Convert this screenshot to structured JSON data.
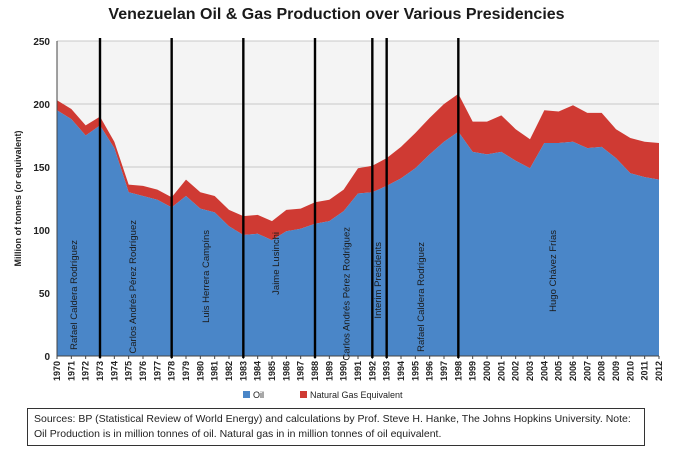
{
  "chart_data": {
    "type": "area",
    "title": "Venezuelan Oil & Gas Production over Various Presidencies",
    "ylabel": "Million of tonnes (or equivalent)",
    "xlabel": "",
    "ylim": [
      0,
      250
    ],
    "yticks": [
      0,
      50,
      100,
      150,
      200,
      250
    ],
    "grid": true,
    "legend_position": "bottom",
    "x": [
      "1970",
      "1971",
      "1972",
      "1973",
      "1974",
      "1975",
      "1976",
      "1977",
      "1978",
      "1979",
      "1980",
      "1981",
      "1982",
      "1983",
      "1984",
      "1985",
      "1986",
      "1987",
      "1988",
      "1989",
      "1990",
      "1991",
      "1992",
      "1993",
      "1994",
      "1995",
      "1996",
      "1997",
      "1998",
      "1999",
      "2000",
      "2001",
      "2002",
      "2003",
      "2004",
      "2005",
      "2006",
      "2007",
      "2008",
      "2009",
      "2010",
      "2011",
      "2012"
    ],
    "series": [
      {
        "name": "Oil",
        "color": "#4a86c8",
        "values": [
          195,
          188,
          175,
          183,
          165,
          130,
          127,
          124,
          118,
          127,
          117,
          114,
          103,
          96,
          97,
          92,
          99,
          101,
          105,
          107,
          115,
          129,
          130,
          135,
          141,
          149,
          160,
          170,
          178,
          162,
          160,
          162,
          155,
          149,
          169,
          169,
          170,
          165,
          166,
          157,
          145,
          142,
          140
        ]
      },
      {
        "name": "Natural Gas Equivalent",
        "color": "#cf3a33",
        "values": [
          8,
          8,
          8,
          7,
          5,
          6,
          8,
          8,
          8,
          13,
          13,
          13,
          13,
          15,
          15,
          15,
          17,
          16,
          17,
          17,
          17,
          20,
          21,
          22,
          25,
          28,
          29,
          30,
          30,
          24,
          26,
          29,
          25,
          23,
          26,
          25,
          29,
          28,
          27,
          23,
          28,
          28,
          29
        ]
      }
    ],
    "presidency_markers": [
      "1973",
      "1978",
      "1983",
      "1988",
      "1992",
      "1993",
      "1998"
    ],
    "presidencies": [
      "Rafael Caldera Rodríguez",
      "Carlos Andrés Pérez Rodríguez",
      "Luis Herrera Campíns",
      "Jaime Lusinchi",
      "Carlos Andrés Pérez Rodríguez",
      "Interim Presidents",
      "Rafael Caldera Rodríguez",
      "Hugo Chávez Frías"
    ]
  },
  "legend": {
    "oil": "Oil",
    "gas": "Natural Gas Equivalent"
  },
  "sources": "Sources: BP (Statistical Review of World Energy) and calculations by Prof. Steve H. Hanke, The Johns Hopkins University. Note:  Oil Production is in million tonnes of oil.  Natural gas in in million tonnes of oil equivalent."
}
